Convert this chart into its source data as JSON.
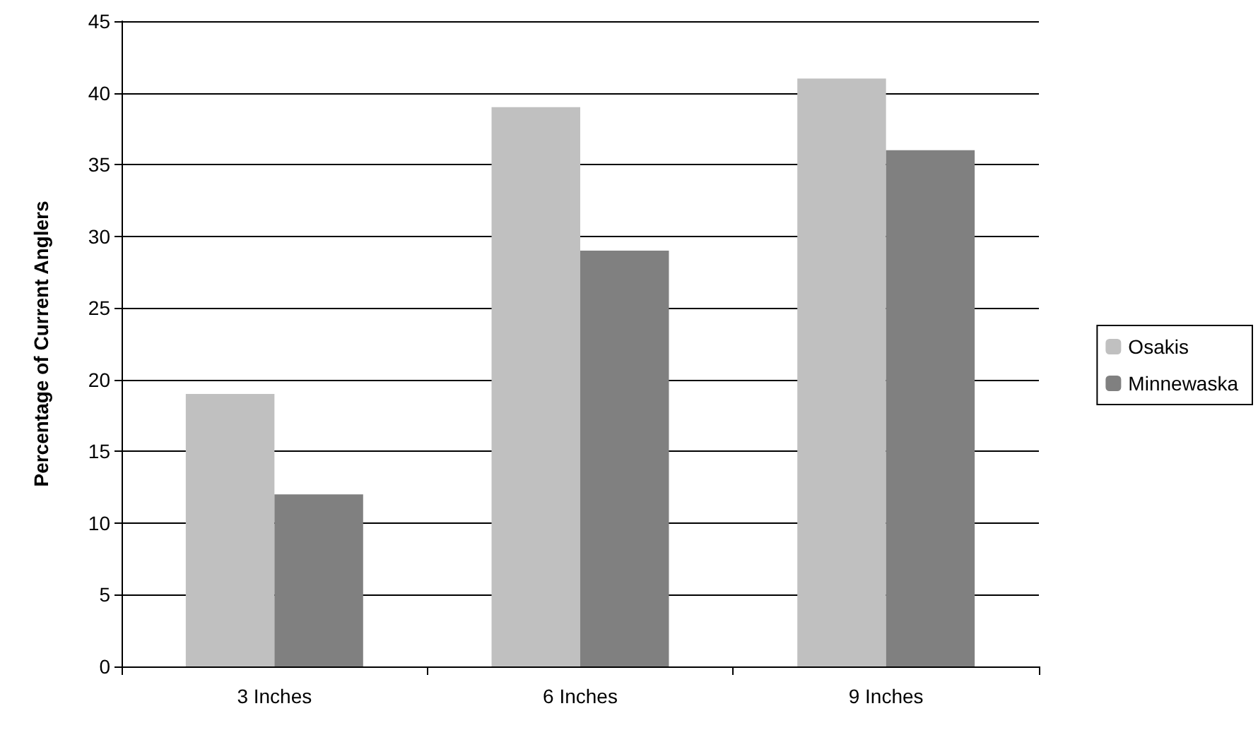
{
  "chart_data": {
    "type": "bar",
    "ylabel": "Percentage of Current Anglers",
    "categories": [
      "3 Inches",
      "6 Inches",
      "9 Inches"
    ],
    "series": [
      {
        "name": "Osakis",
        "color": "#c0c0c0",
        "values": [
          19,
          39,
          41
        ]
      },
      {
        "name": "Minnewaska",
        "color": "#808080",
        "values": [
          12,
          29,
          36
        ]
      }
    ],
    "ylim": [
      0,
      45
    ],
    "yticks": [
      0,
      5,
      10,
      15,
      20,
      25,
      30,
      35,
      40,
      45
    ],
    "grid": "y",
    "legend": "right"
  }
}
